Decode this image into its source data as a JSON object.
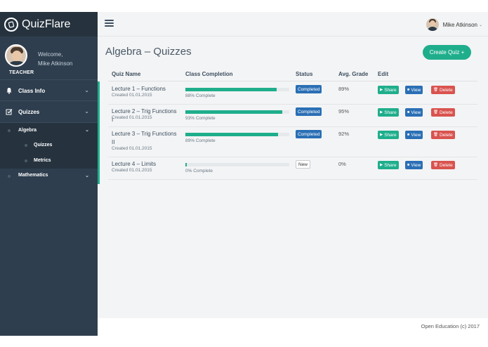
{
  "brand": {
    "name": "QuizFlare"
  },
  "profile": {
    "welcome": "Welcome,",
    "name": "Mike Atkinson",
    "role": "TEACHER"
  },
  "sidebar": {
    "items": [
      {
        "label": "Class Info",
        "icon": "bell-icon"
      },
      {
        "label": "Quizzes",
        "icon": "checkbox-icon"
      },
      {
        "label": "Algebra"
      },
      {
        "label": "Quizzes"
      },
      {
        "label": "Metrics"
      },
      {
        "label": "Mathematics"
      }
    ]
  },
  "topbar": {
    "user_name": "Mike Atkinson"
  },
  "main": {
    "title": "Algebra – Quizzes",
    "create_label": "Create Quiz +",
    "columns": [
      "Quiz Name",
      "Class Completion",
      "Status",
      "Avg. Grade",
      "Edit"
    ],
    "rows": [
      {
        "name": "Lecture 1 – Functions",
        "created": "Created 01.01.2015",
        "completion": 88,
        "completion_text": "88% Complete",
        "status": "Completed",
        "grade": "89%"
      },
      {
        "name": "Lecture 2 – Trig Functions I",
        "created": "Created 01.01.2015",
        "completion": 93,
        "completion_text": "93% Complete",
        "status": "Completed",
        "grade": "95%"
      },
      {
        "name": "Lecture 3 – Trig Functions II",
        "created": "Created 01.01.2015",
        "completion": 89,
        "completion_text": "89% Complete",
        "status": "Completed",
        "grade": "92%"
      },
      {
        "name": "Lecture 4 – Limits",
        "created": "Created 01.01.2015",
        "completion": 0,
        "completion_text": "0% Complete",
        "status": "New",
        "grade": "0%"
      }
    ],
    "actions": {
      "share": "Share",
      "view": "View",
      "delete": "Delete"
    }
  },
  "footer": {
    "text": "Open Education (c) 2017"
  },
  "colors": {
    "sidebar": "#2e3e4e",
    "accent": "#1fae8c",
    "primary": "#2a6fb5",
    "danger": "#d9534f"
  }
}
